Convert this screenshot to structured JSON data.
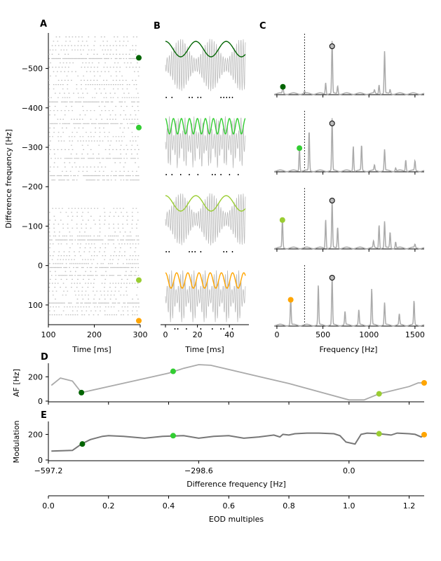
{
  "figure": {
    "panels": [
      "A",
      "B",
      "C",
      "D",
      "E"
    ],
    "colors": {
      "trace": "#aaaaaa",
      "raster": "#bbbbbb",
      "c1": "#006400",
      "c2": "#32cd32",
      "c3": "#9acd32",
      "c4": "#ffa500"
    }
  },
  "chart_data": [
    {
      "panel": "A",
      "type": "scatter",
      "xlabel": "Time [ms]",
      "ylabel": "Difference frequency [Hz]",
      "xlim": [
        100,
        300
      ],
      "ylim": [
        150,
        -590
      ],
      "xticks": [
        "100",
        "200",
        "300"
      ],
      "yticks": [
        {
          "v": -500,
          "t": "−500"
        },
        {
          "v": -400,
          "t": "−400"
        },
        {
          "v": -300,
          "t": "−300"
        },
        {
          "v": -200,
          "t": "−200"
        },
        {
          "v": -100,
          "t": "−100"
        },
        {
          "v": 0,
          "t": "0"
        },
        {
          "v": 100,
          "t": "100"
        }
      ],
      "markers": [
        {
          "y": -527,
          "color": "#006400"
        },
        {
          "y": -350,
          "color": "#32cd32"
        },
        {
          "y": 37,
          "color": "#9acd32"
        },
        {
          "y": 140,
          "color": "#ffa500"
        }
      ],
      "rows_upper": [
        -580,
        -215
      ],
      "rows_lower": [
        -145,
        130
      ]
    },
    {
      "panel": "B",
      "type": "line",
      "xlabel": "Time [ms]",
      "xlim": [
        0,
        50
      ],
      "xticks": [
        "0",
        "20",
        "40"
      ],
      "rows": [
        {
          "color": "#006400",
          "beat_period": 19
        },
        {
          "color": "#32cd32",
          "beat_period": 5
        },
        {
          "color": "#9acd32",
          "beat_period": 19
        },
        {
          "color": "#ffa500",
          "beat_period": 7
        }
      ]
    },
    {
      "panel": "C",
      "type": "line",
      "xlabel": "Frequency [Hz]",
      "xlim": [
        -30,
        1600
      ],
      "xticks": [
        "0",
        "500",
        "1000",
        "1500"
      ],
      "eod_line": 300,
      "eod_peak": 600,
      "rows": [
        {
          "color": "#006400",
          "dot": 65,
          "dot_h": 0.15,
          "peaks": [
            [
              65,
              0.15
            ],
            [
              300,
              0.04
            ],
            [
              530,
              0.22
            ],
            [
              600,
              1.0
            ],
            [
              660,
              0.15
            ],
            [
              1060,
              0.06
            ],
            [
              1110,
              0.18
            ],
            [
              1170,
              0.8
            ],
            [
              1230,
              0.08
            ]
          ]
        },
        {
          "color": "#32cd32",
          "dot": 245,
          "dot_h": 0.45,
          "peaks": [
            [
              245,
              0.45
            ],
            [
              350,
              0.75
            ],
            [
              600,
              1.0
            ],
            [
              830,
              0.48
            ],
            [
              920,
              0.48
            ],
            [
              1060,
              0.1
            ],
            [
              1170,
              0.4
            ],
            [
              1290,
              0.06
            ],
            [
              1400,
              0.22
            ],
            [
              1500,
              0.18
            ]
          ]
        },
        {
          "color": "#9acd32",
          "dot": 60,
          "dot_h": 0.55,
          "peaks": [
            [
              60,
              0.55
            ],
            [
              530,
              0.55
            ],
            [
              600,
              0.9
            ],
            [
              660,
              0.4
            ],
            [
              1050,
              0.12
            ],
            [
              1110,
              0.45
            ],
            [
              1170,
              0.5
            ],
            [
              1230,
              0.3
            ],
            [
              1290,
              0.12
            ],
            [
              1500,
              0.06
            ]
          ]
        },
        {
          "color": "#ffa500",
          "dot": 150,
          "dot_h": 0.5,
          "peaks": [
            [
              150,
              0.5
            ],
            [
              450,
              0.75
            ],
            [
              600,
              0.92
            ],
            [
              740,
              0.25
            ],
            [
              890,
              0.28
            ],
            [
              1030,
              0.68
            ],
            [
              1170,
              0.42
            ],
            [
              1330,
              0.2
            ],
            [
              1490,
              0.45
            ]
          ]
        }
      ]
    },
    {
      "panel": "D",
      "type": "line",
      "ylabel": "AF [Hz]",
      "xlim": [
        0,
        1.25
      ],
      "ylim": [
        0,
        300
      ],
      "yticks": [
        "0",
        "200"
      ],
      "x": [
        0.01,
        0.04,
        0.08,
        0.11,
        0.2,
        0.3,
        0.4,
        0.45,
        0.5,
        0.54,
        0.6,
        0.8,
        1.0,
        1.05,
        1.1,
        1.2,
        1.23,
        1.25
      ],
      "y": [
        130,
        190,
        165,
        70,
        120,
        175,
        230,
        270,
        300,
        295,
        260,
        145,
        10,
        10,
        60,
        120,
        150,
        150
      ],
      "markers": [
        {
          "x": 0.11,
          "y": 70,
          "color": "#006400"
        },
        {
          "x": 0.415,
          "y": 245,
          "color": "#32cd32"
        },
        {
          "x": 1.1,
          "y": 60,
          "color": "#9acd32"
        },
        {
          "x": 1.25,
          "y": 150,
          "color": "#ffa500"
        }
      ]
    },
    {
      "panel": "E",
      "type": "line",
      "ylabel": "Modulation",
      "xlabel": "Difference frequency [Hz]",
      "xlabel2": "EOD multiples",
      "xlim": [
        0,
        1.25
      ],
      "ylim": [
        0,
        290
      ],
      "yticks": [
        "0",
        "200"
      ],
      "xticks_top": [
        {
          "v": 0,
          "t": "−597.2"
        },
        {
          "v": 0.5,
          "t": "−298.6"
        },
        {
          "v": 1.0,
          "t": "0.0"
        }
      ],
      "xticks_bottom": [
        "0.0",
        "0.2",
        "0.4",
        "0.6",
        "0.8",
        "1.0",
        "1.2"
      ],
      "x": [
        0.01,
        0.08,
        0.11,
        0.14,
        0.18,
        0.2,
        0.25,
        0.32,
        0.38,
        0.45,
        0.5,
        0.55,
        0.6,
        0.65,
        0.7,
        0.75,
        0.77,
        0.78,
        0.8,
        0.82,
        0.86,
        0.9,
        0.95,
        0.97,
        0.99,
        1.02,
        1.04,
        1.06,
        1.1,
        1.14,
        1.16,
        1.2,
        1.22,
        1.24,
        1.25
      ],
      "y": [
        70,
        75,
        125,
        160,
        185,
        190,
        185,
        170,
        185,
        190,
        170,
        185,
        190,
        170,
        180,
        195,
        180,
        200,
        195,
        205,
        210,
        210,
        205,
        190,
        140,
        125,
        200,
        210,
        205,
        195,
        210,
        205,
        200,
        180,
        195
      ],
      "markers": [
        {
          "x": 0.113,
          "y": 125,
          "color": "#006400"
        },
        {
          "x": 0.415,
          "y": 190,
          "color": "#32cd32"
        },
        {
          "x": 1.1,
          "y": 205,
          "color": "#9acd32"
        },
        {
          "x": 1.25,
          "y": 198,
          "color": "#ffa500"
        }
      ]
    }
  ]
}
